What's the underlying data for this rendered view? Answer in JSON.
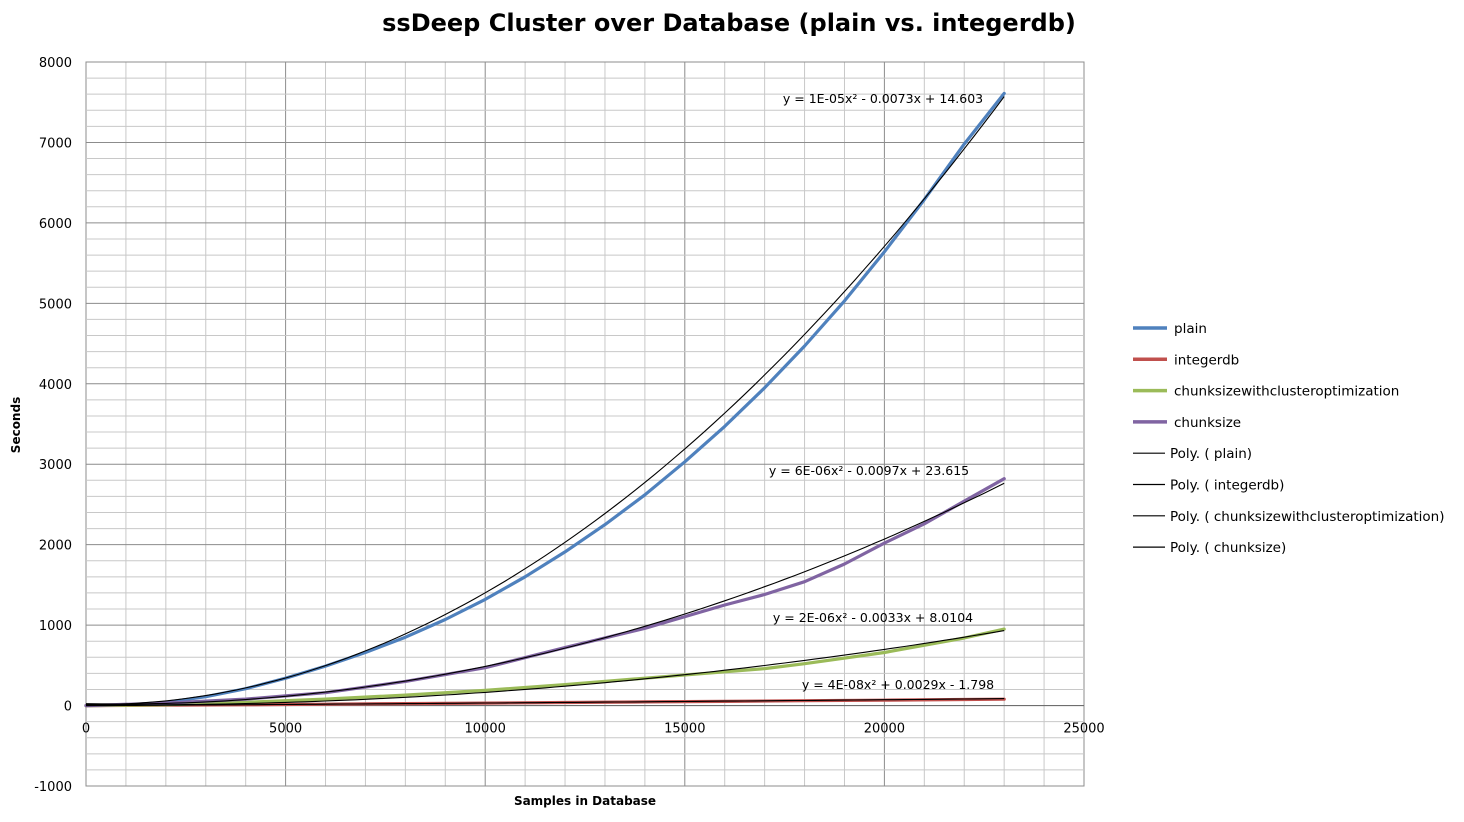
{
  "chart_data": {
    "type": "line",
    "title": "ssDeep Cluster over Database (plain vs. integerdb)",
    "xlabel": "Samples in Database",
    "ylabel": "Seconds",
    "xlim": [
      0,
      25000
    ],
    "ylim": [
      -1000,
      8000
    ],
    "x_ticks": [
      0,
      5000,
      10000,
      15000,
      20000,
      25000
    ],
    "y_ticks": [
      -1000,
      0,
      1000,
      2000,
      3000,
      4000,
      5000,
      6000,
      7000,
      8000
    ],
    "grid": true,
    "legend_position": "right",
    "series": [
      {
        "name": "plain",
        "color": "#4F81BD",
        "x": [
          0,
          1000,
          2000,
          3000,
          4000,
          5000,
          6000,
          7000,
          8000,
          9000,
          10000,
          11000,
          12000,
          13000,
          14000,
          15000,
          16000,
          17000,
          18000,
          19000,
          20000,
          21000,
          22000,
          23000
        ],
        "y": [
          0,
          5,
          40,
          110,
          210,
          340,
          490,
          660,
          850,
          1070,
          1320,
          1600,
          1910,
          2250,
          2620,
          3030,
          3470,
          3950,
          4470,
          5030,
          5640,
          6290,
          6980,
          7610
        ]
      },
      {
        "name": "integerdb",
        "color": "#C0504D",
        "x": [
          0,
          2000,
          4000,
          6000,
          8000,
          10000,
          12000,
          14000,
          16000,
          18000,
          20000,
          22000,
          23000
        ],
        "y": [
          0,
          4,
          10,
          17,
          24,
          31,
          38,
          45,
          52,
          60,
          67,
          75,
          79
        ]
      },
      {
        "name": "chunksizewithclusteroptimization",
        "color": "#9BBB59",
        "x": [
          0,
          2000,
          4000,
          6000,
          8000,
          10000,
          12000,
          14000,
          16000,
          17000,
          18000,
          20000,
          22000,
          23000
        ],
        "y": [
          0,
          10,
          40,
          80,
          130,
          190,
          260,
          340,
          420,
          460,
          520,
          660,
          840,
          950
        ]
      },
      {
        "name": "chunksize",
        "color": "#8064A2",
        "x": [
          0,
          2000,
          4000,
          5000,
          6000,
          8000,
          10000,
          12000,
          14000,
          16000,
          17000,
          18000,
          19000,
          20000,
          21000,
          22000,
          23000
        ],
        "y": [
          0,
          30,
          80,
          120,
          160,
          300,
          470,
          720,
          960,
          1250,
          1380,
          1540,
          1760,
          2020,
          2260,
          2540,
          2820
        ]
      }
    ],
    "trendlines": [
      {
        "name": "Poly. ( plain)",
        "color": "#000000",
        "equation": "y = 1E-05x² - 0.0073x + 14.603",
        "coeffs": [
          1.46e-05,
          -0.0073,
          14.603
        ]
      },
      {
        "name": "Poly. ( integerdb)",
        "color": "#000000",
        "equation": "y = 4E-08x² + 0.0029x - 1.798",
        "coeffs": [
          4e-08,
          0.0029,
          -1.798
        ]
      },
      {
        "name": "Poly. ( chunksizewithclusteroptimization)",
        "color": "#000000",
        "equation": "y = 2E-06x² - 0.0033x + 8.0104",
        "coeffs": [
          1.89e-06,
          -0.0033,
          8.0104
        ]
      },
      {
        "name": "Poly. ( chunksize)",
        "color": "#000000",
        "equation": "y = 6E-06x² - 0.0097x + 23.615",
        "coeffs": [
          5.6e-06,
          -0.0097,
          23.615
        ]
      }
    ]
  }
}
